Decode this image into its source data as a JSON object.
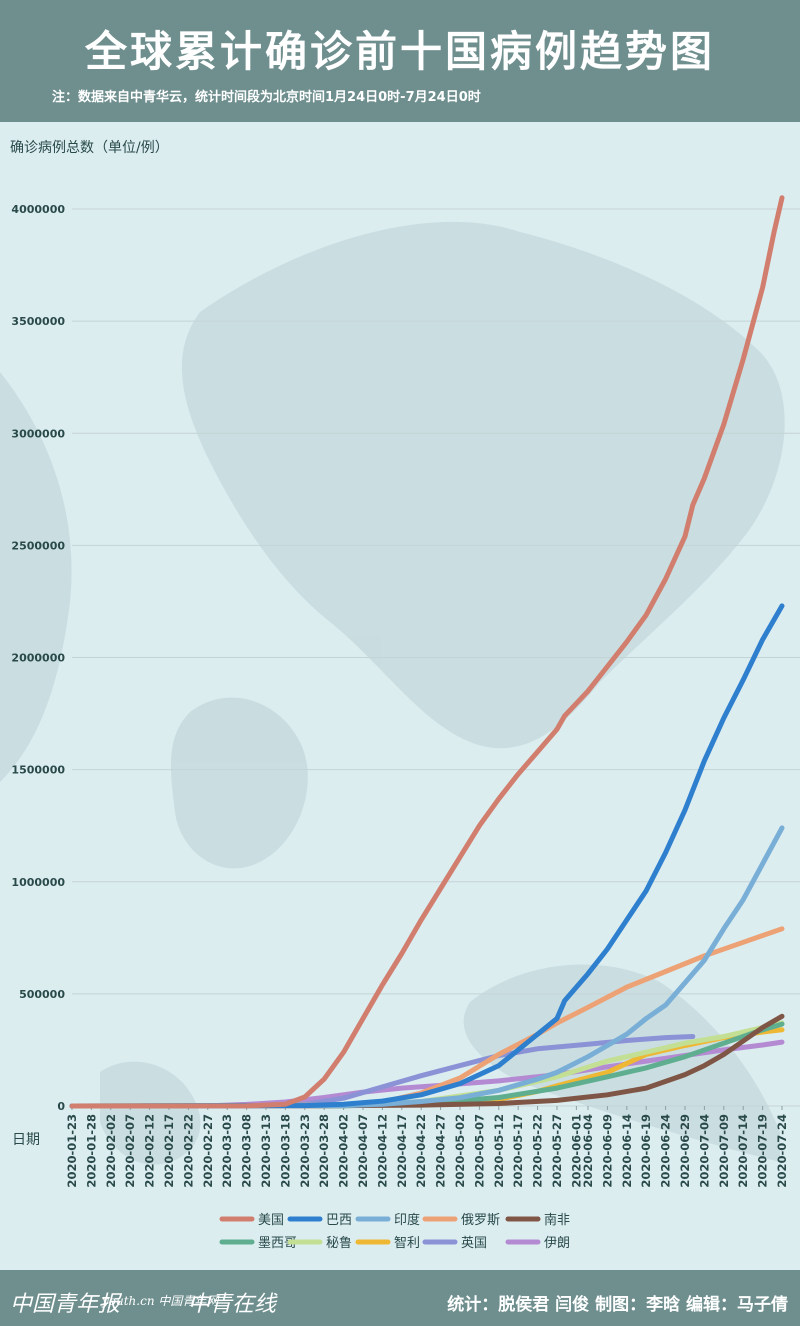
{
  "title": "全球累计确诊前十国病例趋势图",
  "note": "注：数据来自中青华云，统计时间段为北京时间1月24日0时-7月24日0时",
  "footer": {
    "logos": [
      "中国青年报",
      "youth.cn 中国青年网",
      "中青在线"
    ],
    "credits": "统计：脱侯君 闫俊 制图：李晗 编辑：马子倩"
  },
  "chart_data": {
    "type": "line",
    "ylabel": "确诊病例总数（单位/例）",
    "xlabel": "日期",
    "ylim": [
      0,
      4000000
    ],
    "y_ticks": [
      0,
      500000,
      1000000,
      1500000,
      2000000,
      2500000,
      3000000,
      3500000,
      4000000
    ],
    "x_ticks": [
      "2020-01-23",
      "2020-01-28",
      "2020-02-02",
      "2020-02-07",
      "2020-02-12",
      "2020-02-17",
      "2020-02-22",
      "2020-02-27",
      "2020-03-03",
      "2020-03-08",
      "2020-03-13",
      "2020-03-18",
      "2020-03-23",
      "2020-03-28",
      "2020-04-02",
      "2020-04-07",
      "2020-04-12",
      "2020-04-17",
      "2020-04-22",
      "2020-04-27",
      "2020-05-02",
      "2020-05-07",
      "2020-05-12",
      "2020-05-17",
      "2020-05-22",
      "2020-05-27",
      "2020-06-01",
      "2020-06-04",
      "2020-06-09",
      "2020-06-14",
      "2020-06-19",
      "2020-06-24",
      "2020-06-29",
      "2020-07-04",
      "2020-07-09",
      "2020-07-14",
      "2020-07-19",
      "2020-07-24"
    ],
    "grid": true,
    "legend_position": "bottom",
    "series": [
      {
        "name": "美国",
        "color": "#d17e6e",
        "points": [
          [
            "2020-01-23",
            0
          ],
          [
            "2020-03-08",
            500
          ],
          [
            "2020-03-18",
            8000
          ],
          [
            "2020-03-23",
            40000
          ],
          [
            "2020-03-28",
            120000
          ],
          [
            "2020-04-02",
            240000
          ],
          [
            "2020-04-07",
            390000
          ],
          [
            "2020-04-12",
            540000
          ],
          [
            "2020-04-17",
            680000
          ],
          [
            "2020-04-22",
            830000
          ],
          [
            "2020-04-27",
            970000
          ],
          [
            "2020-05-02",
            1110000
          ],
          [
            "2020-05-07",
            1250000
          ],
          [
            "2020-05-12",
            1370000
          ],
          [
            "2020-05-17",
            1480000
          ],
          [
            "2020-05-22",
            1580000
          ],
          [
            "2020-05-27",
            1680000
          ],
          [
            "2020-05-29",
            1740000
          ],
          [
            "2020-06-04",
            1850000
          ],
          [
            "2020-06-09",
            1960000
          ],
          [
            "2020-06-14",
            2070000
          ],
          [
            "2020-06-19",
            2190000
          ],
          [
            "2020-06-24",
            2350000
          ],
          [
            "2020-06-29",
            2540000
          ],
          [
            "2020-07-01",
            2680000
          ],
          [
            "2020-07-04",
            2800000
          ],
          [
            "2020-07-09",
            3040000
          ],
          [
            "2020-07-14",
            3330000
          ],
          [
            "2020-07-19",
            3650000
          ],
          [
            "2020-07-22",
            3900000
          ],
          [
            "2020-07-24",
            4050000
          ]
        ]
      },
      {
        "name": "巴西",
        "color": "#2e7fce",
        "points": [
          [
            "2020-01-23",
            0
          ],
          [
            "2020-03-23",
            2000
          ],
          [
            "2020-04-02",
            8000
          ],
          [
            "2020-04-12",
            22000
          ],
          [
            "2020-04-22",
            50000
          ],
          [
            "2020-05-02",
            100000
          ],
          [
            "2020-05-12",
            180000
          ],
          [
            "2020-05-22",
            320000
          ],
          [
            "2020-05-27",
            390000
          ],
          [
            "2020-05-29",
            470000
          ],
          [
            "2020-06-04",
            590000
          ],
          [
            "2020-06-09",
            700000
          ],
          [
            "2020-06-14",
            830000
          ],
          [
            "2020-06-19",
            960000
          ],
          [
            "2020-06-24",
            1130000
          ],
          [
            "2020-06-29",
            1320000
          ],
          [
            "2020-07-04",
            1540000
          ],
          [
            "2020-07-09",
            1730000
          ],
          [
            "2020-07-14",
            1900000
          ],
          [
            "2020-07-19",
            2080000
          ],
          [
            "2020-07-24",
            2230000
          ]
        ]
      },
      {
        "name": "印度",
        "color": "#79aed6",
        "points": [
          [
            "2020-01-23",
            0
          ],
          [
            "2020-04-02",
            2000
          ],
          [
            "2020-04-12",
            8000
          ],
          [
            "2020-04-22",
            20000
          ],
          [
            "2020-05-02",
            37000
          ],
          [
            "2020-05-12",
            70000
          ],
          [
            "2020-05-22",
            120000
          ],
          [
            "2020-05-27",
            150000
          ],
          [
            "2020-06-04",
            220000
          ],
          [
            "2020-06-09",
            270000
          ],
          [
            "2020-06-14",
            320000
          ],
          [
            "2020-06-19",
            390000
          ],
          [
            "2020-06-24",
            450000
          ],
          [
            "2020-06-29",
            550000
          ],
          [
            "2020-07-04",
            650000
          ],
          [
            "2020-07-09",
            790000
          ],
          [
            "2020-07-14",
            920000
          ],
          [
            "2020-07-19",
            1080000
          ],
          [
            "2020-07-24",
            1240000
          ]
        ]
      },
      {
        "name": "俄罗斯",
        "color": "#eda276",
        "points": [
          [
            "2020-01-23",
            0
          ],
          [
            "2020-03-23",
            500
          ],
          [
            "2020-04-02",
            3000
          ],
          [
            "2020-04-12",
            18000
          ],
          [
            "2020-04-22",
            58000
          ],
          [
            "2020-05-02",
            125000
          ],
          [
            "2020-05-12",
            230000
          ],
          [
            "2020-05-22",
            320000
          ],
          [
            "2020-05-27",
            370000
          ],
          [
            "2020-06-04",
            440000
          ],
          [
            "2020-06-14",
            530000
          ],
          [
            "2020-06-24",
            600000
          ],
          [
            "2020-07-04",
            670000
          ],
          [
            "2020-07-14",
            730000
          ],
          [
            "2020-07-24",
            790000
          ]
        ]
      },
      {
        "name": "南非",
        "color": "#7f5646",
        "points": [
          [
            "2020-01-23",
            0
          ],
          [
            "2020-03-28",
            1000
          ],
          [
            "2020-04-22",
            4000
          ],
          [
            "2020-05-12",
            11000
          ],
          [
            "2020-05-27",
            25000
          ],
          [
            "2020-06-09",
            50000
          ],
          [
            "2020-06-19",
            80000
          ],
          [
            "2020-06-29",
            140000
          ],
          [
            "2020-07-04",
            180000
          ],
          [
            "2020-07-09",
            230000
          ],
          [
            "2020-07-14",
            290000
          ],
          [
            "2020-07-19",
            350000
          ],
          [
            "2020-07-24",
            400000
          ]
        ]
      },
      {
        "name": "墨西哥",
        "color": "#5eae8f",
        "points": [
          [
            "2020-01-23",
            0
          ],
          [
            "2020-04-02",
            1500
          ],
          [
            "2020-04-22",
            10000
          ],
          [
            "2020-05-12",
            38000
          ],
          [
            "2020-05-27",
            80000
          ],
          [
            "2020-06-09",
            130000
          ],
          [
            "2020-06-19",
            170000
          ],
          [
            "2020-06-29",
            220000
          ],
          [
            "2020-07-09",
            280000
          ],
          [
            "2020-07-19",
            340000
          ],
          [
            "2020-07-24",
            365000
          ]
        ]
      },
      {
        "name": "秘鲁",
        "color": "#c3df94",
        "points": [
          [
            "2020-01-23",
            0
          ],
          [
            "2020-04-02",
            1500
          ],
          [
            "2020-04-22",
            20000
          ],
          [
            "2020-05-12",
            70000
          ],
          [
            "2020-05-27",
            130000
          ],
          [
            "2020-06-09",
            200000
          ],
          [
            "2020-06-19",
            240000
          ],
          [
            "2020-06-29",
            280000
          ],
          [
            "2020-07-09",
            310000
          ],
          [
            "2020-07-19",
            350000
          ],
          [
            "2020-07-24",
            370000
          ]
        ]
      },
      {
        "name": "智利",
        "color": "#eeb834",
        "points": [
          [
            "2020-01-23",
            0
          ],
          [
            "2020-04-02",
            3000
          ],
          [
            "2020-04-22",
            12000
          ],
          [
            "2020-05-12",
            30000
          ],
          [
            "2020-05-22",
            65000
          ],
          [
            "2020-05-27",
            90000
          ],
          [
            "2020-06-09",
            150000
          ],
          [
            "2020-06-19",
            230000
          ],
          [
            "2020-06-29",
            270000
          ],
          [
            "2020-07-09",
            305000
          ],
          [
            "2020-07-19",
            330000
          ],
          [
            "2020-07-24",
            340000
          ]
        ]
      },
      {
        "name": "英国",
        "color": "#8b93d6",
        "points": [
          [
            "2020-01-23",
            0
          ],
          [
            "2020-03-13",
            1000
          ],
          [
            "2020-03-23",
            8000
          ],
          [
            "2020-04-02",
            35000
          ],
          [
            "2020-04-12",
            85000
          ],
          [
            "2020-04-22",
            135000
          ],
          [
            "2020-05-02",
            180000
          ],
          [
            "2020-05-12",
            225000
          ],
          [
            "2020-05-22",
            255000
          ],
          [
            "2020-06-04",
            275000
          ],
          [
            "2020-06-14",
            292000
          ],
          [
            "2020-06-24",
            305000
          ],
          [
            "2020-07-01",
            310000
          ]
        ]
      },
      {
        "name": "伊朗",
        "color": "#b48ad3",
        "points": [
          [
            "2020-01-23",
            0
          ],
          [
            "2020-02-27",
            300
          ],
          [
            "2020-03-08",
            7000
          ],
          [
            "2020-03-18",
            18000
          ],
          [
            "2020-03-28",
            38000
          ],
          [
            "2020-04-07",
            62000
          ],
          [
            "2020-04-17",
            80000
          ],
          [
            "2020-04-27",
            92000
          ],
          [
            "2020-05-12",
            112000
          ],
          [
            "2020-05-27",
            140000
          ],
          [
            "2020-06-09",
            175000
          ],
          [
            "2020-06-19",
            200000
          ],
          [
            "2020-06-29",
            225000
          ],
          [
            "2020-07-09",
            250000
          ],
          [
            "2020-07-19",
            272000
          ],
          [
            "2020-07-24",
            285000
          ]
        ]
      }
    ]
  }
}
